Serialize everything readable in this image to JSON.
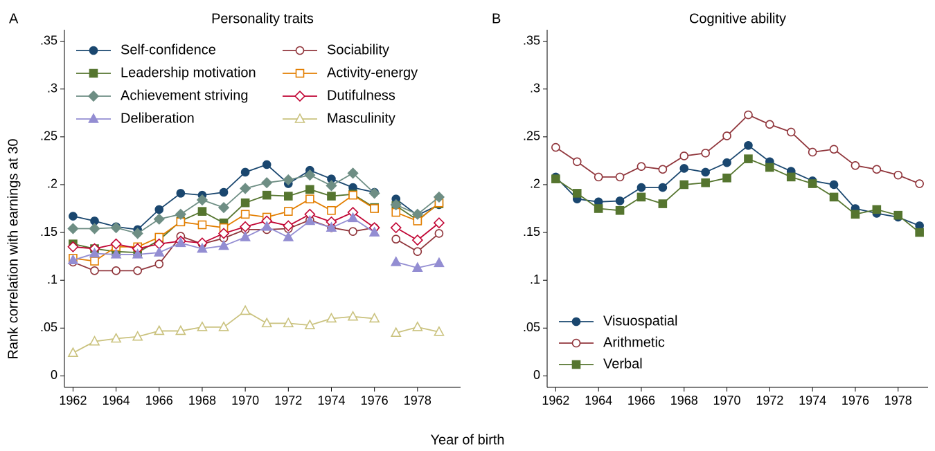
{
  "xlabel": "Year of birth",
  "chart_data": [
    {
      "type": "line",
      "panel_label": "A",
      "title": "Personality traits",
      "ylabel": "Rank correlation with earnings at 30",
      "x": [
        1962,
        1963,
        1964,
        1965,
        1966,
        1967,
        1968,
        1969,
        1970,
        1971,
        1972,
        1973,
        1974,
        1975,
        1976,
        1977,
        1978,
        1979
      ],
      "line_break_before": 1977,
      "xlim": [
        1961.6,
        1980
      ],
      "xticks": [
        1962,
        1964,
        1966,
        1968,
        1970,
        1972,
        1974,
        1976,
        1978
      ],
      "ylim": [
        -0.012,
        0.362
      ],
      "yticks": [
        0,
        {
          "value": 0.05,
          "label": ".05"
        },
        {
          "value": 0.1,
          "label": ".1"
        },
        {
          "value": 0.15,
          "label": ".15"
        },
        {
          "value": 0.2,
          "label": ".2"
        },
        {
          "value": 0.25,
          "label": ".25"
        },
        {
          "value": 0.3,
          "label": ".3"
        },
        {
          "value": 0.35,
          "label": ".35"
        }
      ],
      "legend": "upper left",
      "legend_columns": 2,
      "series": [
        {
          "name": "Self-confidence",
          "color": "#1a476f",
          "marker": "circle",
          "filled": true,
          "values": [
            0.167,
            0.162,
            0.156,
            0.153,
            0.174,
            0.191,
            0.189,
            0.192,
            0.213,
            0.221,
            0.201,
            0.215,
            0.206,
            0.197,
            0.192,
            0.185,
            0.168,
            0.179
          ]
        },
        {
          "name": "Sociability",
          "color": "#90353b",
          "marker": "circle",
          "filled": false,
          "values": [
            0.119,
            0.11,
            0.11,
            0.11,
            0.117,
            0.146,
            0.138,
            0.144,
            0.153,
            0.153,
            0.154,
            0.163,
            0.155,
            0.151,
            0.155,
            0.143,
            0.13,
            0.149
          ]
        },
        {
          "name": "Leadership motivation",
          "color": "#55752f",
          "marker": "square",
          "filled": true,
          "values": [
            0.138,
            0.133,
            0.13,
            0.129,
            0.142,
            0.162,
            0.172,
            0.16,
            0.181,
            0.189,
            0.188,
            0.195,
            0.188,
            0.19,
            0.176,
            0.178,
            0.163,
            0.18
          ]
        },
        {
          "name": "Activity-energy",
          "color": "#e37e00",
          "marker": "square",
          "filled": false,
          "values": [
            0.123,
            0.12,
            0.135,
            0.135,
            0.145,
            0.161,
            0.158,
            0.155,
            0.169,
            0.166,
            0.172,
            0.185,
            0.173,
            0.189,
            0.175,
            0.171,
            0.162,
            0.181
          ]
        },
        {
          "name": "Achievement striving",
          "color": "#6e8e84",
          "marker": "diamond",
          "filled": true,
          "values": [
            0.154,
            0.154,
            0.155,
            0.149,
            0.164,
            0.169,
            0.184,
            0.176,
            0.196,
            0.202,
            0.205,
            0.21,
            0.199,
            0.212,
            0.191,
            0.179,
            0.169,
            0.187
          ]
        },
        {
          "name": "Dutifulness",
          "color": "#c10534",
          "marker": "diamond",
          "filled": false,
          "values": [
            0.135,
            0.133,
            0.138,
            0.133,
            0.138,
            0.141,
            0.139,
            0.149,
            0.156,
            0.162,
            0.157,
            0.169,
            0.161,
            0.171,
            0.155,
            0.155,
            0.142,
            0.16
          ]
        },
        {
          "name": "Deliberation",
          "color": "#938dd2",
          "marker": "triangle",
          "filled": true,
          "values": [
            0.121,
            0.128,
            0.127,
            0.127,
            0.129,
            0.139,
            0.133,
            0.136,
            0.145,
            0.156,
            0.145,
            0.162,
            0.155,
            0.165,
            0.15,
            0.119,
            0.113,
            0.118
          ]
        },
        {
          "name": "Masculinity",
          "color": "#cac27e",
          "marker": "triangle",
          "filled": false,
          "values": [
            0.024,
            0.036,
            0.039,
            0.041,
            0.047,
            0.047,
            0.051,
            0.051,
            0.068,
            0.055,
            0.055,
            0.053,
            0.06,
            0.062,
            0.06,
            0.045,
            0.051,
            0.046
          ]
        }
      ]
    },
    {
      "type": "line",
      "panel_label": "B",
      "title": "Cognitive ability",
      "x": [
        1962,
        1963,
        1964,
        1965,
        1966,
        1967,
        1968,
        1969,
        1970,
        1971,
        1972,
        1973,
        1974,
        1975,
        1976,
        1977,
        1978,
        1979
      ],
      "xlim": [
        1961.6,
        1979.4
      ],
      "xticks": [
        1962,
        1964,
        1966,
        1968,
        1970,
        1972,
        1974,
        1976,
        1978
      ],
      "ylim": [
        -0.012,
        0.362
      ],
      "yticks": [
        0,
        {
          "value": 0.05,
          "label": ".05"
        },
        {
          "value": 0.1,
          "label": ".1"
        },
        {
          "value": 0.15,
          "label": ".15"
        },
        {
          "value": 0.2,
          "label": ".2"
        },
        {
          "value": 0.25,
          "label": ".25"
        },
        {
          "value": 0.3,
          "label": ".3"
        },
        {
          "value": 0.35,
          "label": ".35"
        }
      ],
      "legend": "lower left",
      "legend_columns": 1,
      "series": [
        {
          "name": "Visuospatial",
          "color": "#1a476f",
          "marker": "circle",
          "filled": true,
          "values": [
            0.208,
            0.185,
            0.182,
            0.183,
            0.197,
            0.197,
            0.217,
            0.213,
            0.223,
            0.241,
            0.224,
            0.214,
            0.204,
            0.2,
            0.175,
            0.17,
            0.166,
            0.157
          ]
        },
        {
          "name": "Arithmetic",
          "color": "#90353b",
          "marker": "circle",
          "filled": false,
          "values": [
            0.239,
            0.224,
            0.208,
            0.208,
            0.219,
            0.216,
            0.23,
            0.233,
            0.251,
            0.273,
            0.263,
            0.255,
            0.234,
            0.237,
            0.22,
            0.216,
            0.21,
            0.201
          ]
        },
        {
          "name": "Verbal",
          "color": "#55752f",
          "marker": "square",
          "filled": true,
          "values": [
            0.206,
            0.191,
            0.175,
            0.173,
            0.187,
            0.18,
            0.2,
            0.202,
            0.207,
            0.227,
            0.218,
            0.208,
            0.201,
            0.187,
            0.169,
            0.174,
            0.168,
            0.15
          ]
        }
      ]
    }
  ]
}
